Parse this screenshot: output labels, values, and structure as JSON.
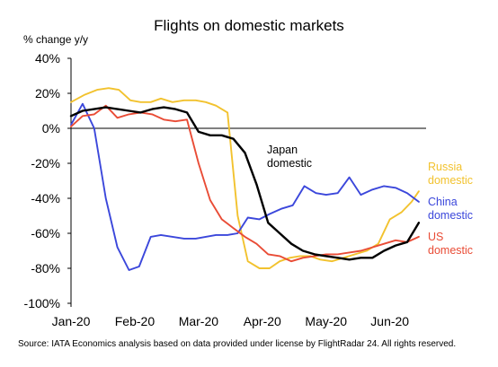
{
  "chart_data": {
    "type": "line",
    "title": "Flights on domestic markets",
    "ylabel": "% change y/y",
    "xlabel": "",
    "ylim": [
      -100,
      40
    ],
    "y_ticks": [
      40,
      20,
      0,
      -20,
      -40,
      -60,
      -80,
      -100
    ],
    "y_tick_labels": [
      "40%",
      "20%",
      "0%",
      "-20%",
      "-40%",
      "-60%",
      "-80%",
      "-100%"
    ],
    "x_tick_labels": [
      "Jan-20",
      "Feb-20",
      "Mar-20",
      "Apr-20",
      "May-20",
      "Jun-20"
    ],
    "x_tick_positions": [
      0,
      4.4,
      8.8,
      13.2,
      17.6,
      22
    ],
    "xlim": [
      0,
      24.5
    ],
    "series": [
      {
        "name": "Russia domestic",
        "label_lines": [
          "Russia",
          "domestic"
        ],
        "color": "#f2c22e",
        "x": [
          0,
          0.9,
          1.8,
          2.6,
          3.3,
          4.1,
          4.8,
          5.5,
          6.2,
          7.0,
          7.8,
          8.6,
          9.3,
          10.0,
          10.8,
          11.5,
          12.2,
          13.0,
          13.7,
          14.4,
          15.1,
          15.8,
          16.5,
          17.2,
          18.0,
          18.8,
          19.6,
          20.4,
          21.2,
          22.0,
          22.8,
          23.5,
          24.0
        ],
        "y": [
          15,
          19,
          22,
          23,
          22,
          16,
          15,
          15,
          17,
          15,
          16,
          16,
          15,
          13,
          9,
          -50,
          -76,
          -80,
          -80,
          -76,
          -74,
          -73,
          -73,
          -75,
          -76,
          -74,
          -72,
          -70,
          -66,
          -52,
          -48,
          -42,
          -36
        ]
      },
      {
        "name": "China domestic",
        "label_lines": [
          "China",
          "domestic"
        ],
        "color": "#3b47db",
        "x": [
          0,
          0.8,
          1.6,
          2.4,
          3.2,
          4.0,
          4.7,
          5.5,
          6.2,
          7.0,
          7.8,
          8.6,
          9.3,
          10.0,
          10.8,
          11.5,
          12.2,
          13.0,
          13.7,
          14.5,
          15.3,
          16.1,
          16.9,
          17.6,
          18.4,
          19.2,
          20.0,
          20.8,
          21.6,
          22.4,
          23.2,
          24.0
        ],
        "y": [
          2,
          14,
          0,
          -40,
          -68,
          -81,
          -79,
          -62,
          -61,
          -62,
          -63,
          -63,
          -62,
          -61,
          -61,
          -60,
          -51,
          -52,
          -49,
          -46,
          -44,
          -33,
          -37,
          -38,
          -37,
          -28,
          -38,
          -35,
          -33,
          -34,
          -37,
          -42
        ]
      },
      {
        "name": "US domestic",
        "label_lines": [
          "US",
          "domestic"
        ],
        "color": "#e94c36",
        "x": [
          0,
          0.8,
          1.6,
          2.4,
          3.2,
          4.0,
          4.8,
          5.6,
          6.4,
          7.2,
          8.0,
          8.8,
          9.6,
          10.4,
          11.2,
          12.0,
          12.8,
          13.6,
          14.4,
          15.2,
          16.0,
          16.8,
          17.6,
          18.4,
          19.2,
          20.0,
          20.8,
          21.6,
          22.4,
          23.2,
          24.0
        ],
        "y": [
          1,
          7,
          8,
          13,
          6,
          8,
          9,
          8,
          5,
          4,
          5,
          -20,
          -41,
          -52,
          -57,
          -62,
          -66,
          -72,
          -73,
          -76,
          -74,
          -73,
          -72,
          -72,
          -71,
          -70,
          -68,
          -66,
          -64,
          -65,
          -62
        ]
      },
      {
        "name": "Japan domestic",
        "label_lines": [
          "Japan",
          "domestic"
        ],
        "color": "#000000",
        "x": [
          0,
          0.8,
          1.6,
          2.4,
          3.2,
          4.0,
          4.8,
          5.6,
          6.4,
          7.2,
          8.0,
          8.8,
          9.6,
          10.4,
          11.2,
          12.0,
          12.8,
          13.6,
          14.4,
          15.2,
          16.0,
          16.8,
          17.6,
          18.4,
          19.2,
          20.0,
          20.8,
          21.6,
          22.4,
          23.2,
          24.0
        ],
        "y": [
          7,
          10,
          11,
          12,
          11,
          10,
          9,
          11,
          12,
          11,
          9,
          -2,
          -4,
          -4,
          -6,
          -14,
          -32,
          -54,
          -60,
          -66,
          -70,
          -72,
          -73,
          -74,
          -75,
          -74,
          -74,
          -70,
          -67,
          -65,
          -54
        ]
      }
    ]
  },
  "source_note": "Source: IATA Economics analysis based on data provided under license by FlightRadar 24. All rights reserved."
}
